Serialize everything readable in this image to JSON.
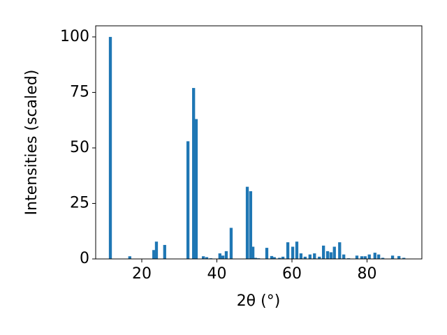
{
  "chart_data": {
    "type": "bar",
    "x_label": "2θ (°)",
    "y_label": "Intensities (scaled)",
    "x": [
      11.63,
      16.8,
      23.2,
      23.9,
      26.1,
      32.3,
      33.8,
      34.5,
      36.4,
      37.3,
      38.4,
      40.8,
      41.6,
      42.5,
      43.8,
      48.1,
      49.0,
      49.6,
      50.3,
      51.1,
      53.3,
      54.6,
      55.3,
      56.7,
      57.6,
      58.9,
      60.2,
      61.3,
      62.4,
      63.5,
      64.8,
      66.0,
      67.3,
      68.4,
      69.5,
      70.4,
      71.3,
      72.7,
      73.8,
      75.1,
      77.3,
      78.6,
      79.5,
      80.6,
      82.1,
      83.1,
      84.2,
      86.8,
      88.5,
      89.8
    ],
    "values": [
      100,
      1.2,
      4,
      7.8,
      6.3,
      53,
      77,
      63,
      1.2,
      0.8,
      0.3,
      2.5,
      1.5,
      3.5,
      14,
      32.5,
      30.5,
      5.5,
      0.5,
      0.3,
      5,
      1.3,
      0.8,
      0.5,
      1,
      7.5,
      5.5,
      7.8,
      2.5,
      1,
      2,
      2.5,
      1,
      6,
      3.5,
      3,
      5.5,
      7.5,
      2,
      0.3,
      1.5,
      1.2,
      1.2,
      2,
      2.8,
      2,
      0.5,
      1.5,
      1.3,
      0.5
    ],
    "color": "#1f77b4",
    "xlim": [
      7.72,
      94.6
    ],
    "xticks": [
      20,
      40,
      60,
      80
    ],
    "ylim": [
      0,
      105
    ],
    "yticks": [
      0,
      25,
      50,
      75,
      100
    ]
  }
}
